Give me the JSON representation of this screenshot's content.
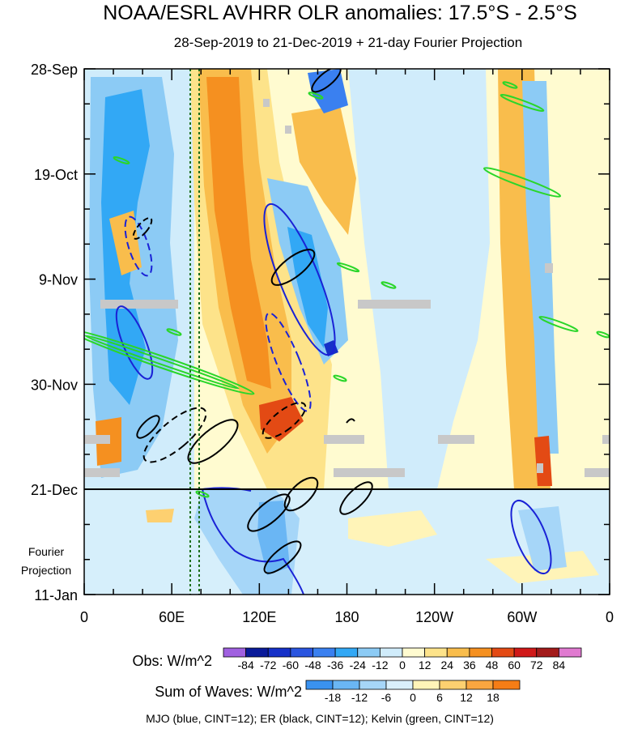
{
  "chart_data": {
    "type": "heatmap",
    "title": "NOAA/ESRL AVHRR OLR anomalies: 17.5°S - 2.5°S",
    "subtitle": "28-Sep-2019 to 21-Dec-2019 + 21-day Fourier Projection",
    "y_ticks": [
      "28-Sep",
      "19-Oct",
      "9-Nov",
      "30-Nov",
      "21-Dec",
      "11-Jan"
    ],
    "projection_label": [
      "Fourier",
      "Projection"
    ],
    "x_ticks": [
      "0",
      "60E",
      "120E",
      "180",
      "120W",
      "60W",
      "0"
    ],
    "x_range_deg_east": [
      0,
      360
    ],
    "obs_legend": {
      "label": "Obs: W/m^2",
      "levels": [
        "-84",
        "-72",
        "-60",
        "-48",
        "-36",
        "-24",
        "-12",
        "0",
        "12",
        "24",
        "36",
        "48",
        "60",
        "72",
        "84"
      ],
      "colors": [
        "#a060e0",
        "#0a1a9a",
        "#1530c8",
        "#2a55e0",
        "#3a80f0",
        "#32a8f5",
        "#8ccbf5",
        "#d0ecfb",
        "#fffbd0",
        "#fde38a",
        "#f9bd4c",
        "#f59020",
        "#e34a14",
        "#d01818",
        "#a31a1a",
        "#e07ad0"
      ]
    },
    "wave_legend": {
      "label": "Sum of Waves: W/m^2",
      "levels": [
        "-18",
        "-12",
        "-6",
        "0",
        "6",
        "12",
        "18"
      ],
      "colors": [
        "#3a92f0",
        "#6ab6f4",
        "#a6d6f8",
        "#daf0fc",
        "#fff4b8",
        "#fdd070",
        "#f9a640",
        "#f57d16"
      ]
    },
    "footer": "MJO (blue, CINT=12); ER (black, CINT=12); Kelvin (green, CINT=12)",
    "series": [
      {
        "name": "MJO",
        "color": "#1a22d6"
      },
      {
        "name": "ER",
        "color": "#000000"
      },
      {
        "name": "Kelvin",
        "color": "#2ad62a"
      }
    ]
  }
}
